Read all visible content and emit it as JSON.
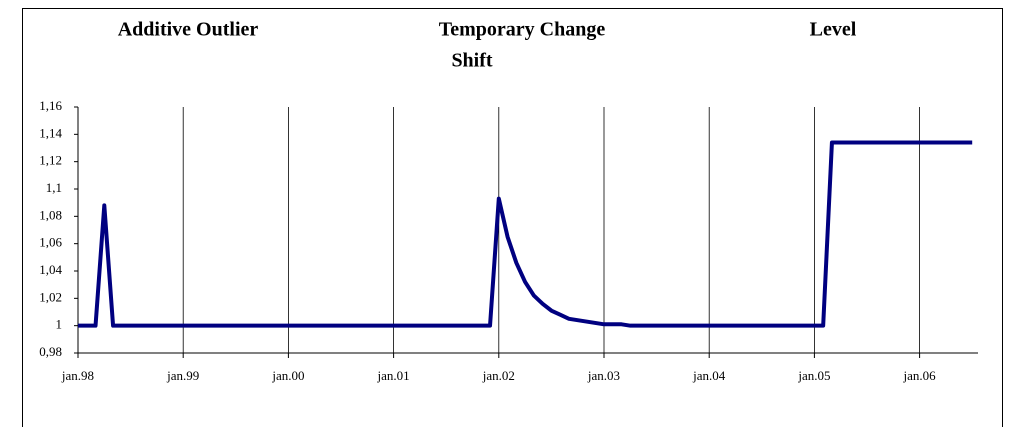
{
  "chart_data": {
    "type": "line",
    "annotations": [
      "Additive Outlier",
      "Temporary Change",
      "Level",
      "Shift"
    ],
    "categories": [
      "jan.98",
      null,
      null,
      null,
      null,
      null,
      null,
      null,
      null,
      null,
      null,
      null,
      "jan.99",
      null,
      null,
      null,
      null,
      null,
      null,
      null,
      null,
      null,
      null,
      null,
      "jan.00",
      null,
      null,
      null,
      null,
      null,
      null,
      null,
      null,
      null,
      null,
      null,
      "jan.01",
      null,
      null,
      null,
      null,
      null,
      null,
      null,
      null,
      null,
      null,
      null,
      "jan.02",
      null,
      null,
      null,
      null,
      null,
      null,
      null,
      null,
      null,
      null,
      null,
      "jan.03",
      null,
      null,
      null,
      null,
      null,
      null,
      null,
      null,
      null,
      null,
      null,
      "jan.04",
      null,
      null,
      null,
      null,
      null,
      null,
      null,
      null,
      null,
      null,
      null,
      "jan.05",
      null,
      null,
      null,
      null,
      null,
      null,
      null,
      null,
      null,
      null,
      null,
      "jan.06",
      null,
      null,
      null,
      null,
      null,
      null
    ],
    "values": [
      1,
      1,
      1,
      1.088,
      1,
      1,
      1,
      1,
      1,
      1,
      1,
      1,
      1,
      1,
      1,
      1,
      1,
      1,
      1,
      1,
      1,
      1,
      1,
      1,
      1,
      1,
      1,
      1,
      1,
      1,
      1,
      1,
      1,
      1,
      1,
      1,
      1,
      1,
      1,
      1,
      1,
      1,
      1,
      1,
      1,
      1,
      1,
      1,
      1.093,
      1.065,
      1.046,
      1.032,
      1.022,
      1.016,
      1.011,
      1.008,
      1.005,
      1.004,
      1.003,
      1.002,
      1.001,
      1.001,
      1.001,
      1,
      1,
      1,
      1,
      1,
      1,
      1,
      1,
      1,
      1,
      1,
      1,
      1,
      1,
      1,
      1,
      1,
      1,
      1,
      1,
      1,
      1,
      1,
      1.134,
      1.134,
      1.134,
      1.134,
      1.134,
      1.134,
      1.134,
      1.134,
      1.134,
      1.134,
      1.134,
      1.134,
      1.134,
      1.134,
      1.134,
      1.134,
      1.134
    ],
    "color": "#000080",
    "ylim": [
      0.98,
      1.16
    ],
    "yticks": [
      {
        "value": 0.98,
        "label": "0,98"
      },
      1,
      {
        "value": 1.02,
        "label": "1,02"
      },
      {
        "value": 1.04,
        "label": "1,04"
      },
      {
        "value": 1.06,
        "label": "1,06"
      },
      {
        "value": 1.08,
        "label": "1,08"
      },
      {
        "value": 1.1,
        "label": "1,1"
      },
      {
        "value": 1.12,
        "label": "1,12"
      },
      {
        "value": 1.14,
        "label": "1,14"
      },
      {
        "value": 1.16,
        "label": "1,16"
      }
    ],
    "grid": true
  }
}
